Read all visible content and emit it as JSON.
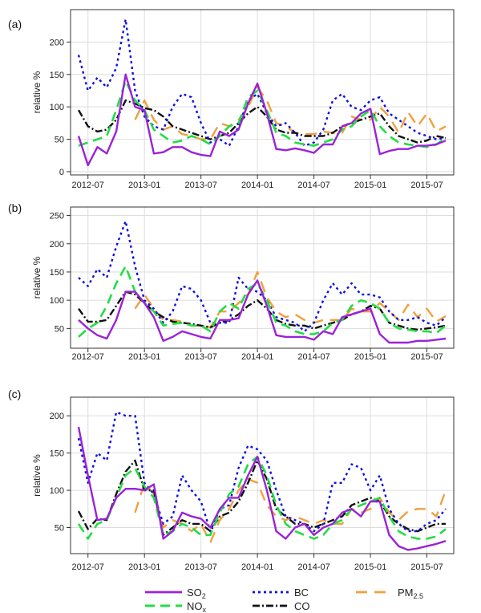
{
  "colors": {
    "SO2": "#9b22d6",
    "NOx": "#22dd44",
    "BC": "#1010dd",
    "CO": "#111111",
    "PM2.5": "#f0a040"
  },
  "chart_data": [
    {
      "type": "line",
      "panel_label": "(a)",
      "ylabel": "relative %",
      "xtick_labels": [
        "2012-07",
        "2013-01",
        "2013-07",
        "2014-01",
        "2014-07",
        "2015-01",
        "2015-07"
      ],
      "yticks": [
        0,
        50,
        100,
        150,
        200
      ],
      "ylim": [
        -5,
        250
      ],
      "grid": true,
      "x": [
        "2012-06",
        "2012-07",
        "2012-08",
        "2012-09",
        "2012-10",
        "2012-11",
        "2012-12",
        "2013-01",
        "2013-02",
        "2013-03",
        "2013-04",
        "2013-05",
        "2013-06",
        "2013-07",
        "2013-08",
        "2013-09",
        "2013-10",
        "2013-11",
        "2013-12",
        "2014-01",
        "2014-02",
        "2014-03",
        "2014-04",
        "2014-05",
        "2014-06",
        "2014-07",
        "2014-08",
        "2014-09",
        "2014-10",
        "2014-11",
        "2014-12",
        "2015-01",
        "2015-02",
        "2015-03",
        "2015-04",
        "2015-05",
        "2015-06",
        "2015-07",
        "2015-08",
        "2015-09"
      ],
      "series": [
        {
          "name": "SO2",
          "values": [
            55,
            10,
            38,
            28,
            62,
            150,
            100,
            95,
            28,
            30,
            38,
            38,
            30,
            26,
            24,
            62,
            55,
            65,
            105,
            136,
            90,
            35,
            33,
            36,
            33,
            29,
            42,
            42,
            70,
            75,
            90,
            97,
            27,
            32,
            35,
            35,
            40,
            40,
            42,
            48
          ]
        },
        {
          "name": "NOx",
          "values": [
            40,
            45,
            50,
            55,
            95,
            140,
            110,
            95,
            65,
            55,
            45,
            48,
            55,
            50,
            42,
            55,
            70,
            75,
            115,
            125,
            95,
            60,
            55,
            45,
            42,
            40,
            45,
            50,
            65,
            70,
            85,
            95,
            70,
            55,
            45,
            42,
            40,
            38,
            42,
            52
          ]
        },
        {
          "name": "BC",
          "values": [
            180,
            125,
            145,
            130,
            160,
            235,
            125,
            85,
            70,
            65,
            100,
            120,
            115,
            75,
            45,
            50,
            40,
            70,
            110,
            120,
            90,
            70,
            75,
            60,
            40,
            45,
            65,
            110,
            120,
            100,
            95,
            110,
            115,
            90,
            80,
            70,
            60,
            55,
            50,
            52
          ]
        },
        {
          "name": "CO",
          "values": [
            95,
            70,
            62,
            65,
            80,
            110,
            105,
            98,
            95,
            85,
            70,
            65,
            60,
            55,
            50,
            55,
            60,
            75,
            90,
            100,
            85,
            65,
            60,
            60,
            55,
            55,
            55,
            60,
            70,
            75,
            80,
            85,
            90,
            70,
            55,
            50,
            45,
            48,
            55,
            52
          ]
        },
        {
          "name": "PM2.5",
          "values": [
            null,
            null,
            null,
            null,
            null,
            null,
            80,
            110,
            80,
            65,
            70,
            58,
            55,
            50,
            50,
            75,
            70,
            80,
            100,
            130,
            110,
            75,
            70,
            60,
            58,
            58,
            62,
            60,
            60,
            85,
            80,
            80,
            100,
            85,
            60,
            92,
            70,
            90,
            62,
            70
          ]
        }
      ]
    },
    {
      "type": "line",
      "panel_label": "(b)",
      "ylabel": "relative %",
      "xtick_labels": [
        "2012-07",
        "2013-01",
        "2013-07",
        "2014-01",
        "2014-07",
        "2015-01",
        "2015-07"
      ],
      "yticks": [
        50,
        100,
        150,
        200,
        250
      ],
      "ylim": [
        15,
        265
      ],
      "grid": true,
      "x": [
        "2012-06",
        "2012-07",
        "2012-08",
        "2012-09",
        "2012-10",
        "2012-11",
        "2012-12",
        "2013-01",
        "2013-02",
        "2013-03",
        "2013-04",
        "2013-05",
        "2013-06",
        "2013-07",
        "2013-08",
        "2013-09",
        "2013-10",
        "2013-11",
        "2013-12",
        "2014-01",
        "2014-02",
        "2014-03",
        "2014-04",
        "2014-05",
        "2014-06",
        "2014-07",
        "2014-08",
        "2014-09",
        "2014-10",
        "2014-11",
        "2014-12",
        "2015-01",
        "2015-02",
        "2015-03",
        "2015-04",
        "2015-05",
        "2015-06",
        "2015-07",
        "2015-08",
        "2015-09"
      ],
      "series": [
        {
          "name": "SO2",
          "values": [
            65,
            50,
            38,
            32,
            65,
            115,
            115,
            95,
            70,
            28,
            35,
            45,
            40,
            35,
            32,
            65,
            65,
            68,
            110,
            135,
            90,
            38,
            35,
            35,
            35,
            30,
            45,
            40,
            70,
            75,
            80,
            85,
            40,
            25,
            25,
            25,
            28,
            28,
            30,
            32
          ]
        },
        {
          "name": "NOx",
          "values": [
            35,
            50,
            60,
            90,
            130,
            160,
            115,
            95,
            80,
            55,
            58,
            60,
            55,
            55,
            45,
            80,
            95,
            85,
            120,
            130,
            100,
            60,
            55,
            45,
            40,
            40,
            45,
            60,
            65,
            90,
            100,
            95,
            85,
            60,
            50,
            48,
            45,
            45,
            42,
            55
          ]
        },
        {
          "name": "BC",
          "values": [
            140,
            125,
            155,
            140,
            195,
            240,
            160,
            100,
            85,
            60,
            80,
            125,
            120,
            100,
            60,
            60,
            60,
            140,
            120,
            115,
            100,
            70,
            65,
            60,
            45,
            60,
            100,
            130,
            110,
            130,
            110,
            110,
            105,
            80,
            65,
            65,
            70,
            60,
            55,
            70
          ]
        },
        {
          "name": "CO",
          "values": [
            85,
            62,
            62,
            65,
            90,
            115,
            110,
            95,
            80,
            70,
            62,
            60,
            58,
            55,
            52,
            60,
            65,
            75,
            90,
            100,
            85,
            65,
            58,
            55,
            55,
            50,
            55,
            60,
            65,
            75,
            80,
            90,
            85,
            60,
            55,
            50,
            48,
            50,
            52,
            55
          ]
        },
        {
          "name": "PM2.5",
          "values": [
            null,
            null,
            null,
            null,
            null,
            null,
            85,
            110,
            85,
            65,
            65,
            62,
            55,
            55,
            52,
            80,
            80,
            95,
            110,
            150,
            105,
            80,
            70,
            75,
            65,
            60,
            65,
            65,
            65,
            85,
            80,
            80,
            95,
            80,
            65,
            92,
            70,
            85,
            62,
            72
          ]
        }
      ]
    },
    {
      "type": "line",
      "panel_label": "(c)",
      "ylabel": "relative %",
      "xtick_labels": [
        "2012-07",
        "2013-01",
        "2013-07",
        "2014-01",
        "2014-07",
        "2015-01",
        "2015-07"
      ],
      "yticks": [
        50,
        100,
        150,
        200
      ],
      "ylim": [
        15,
        225
      ],
      "grid": true,
      "x": [
        "2012-06",
        "2012-07",
        "2012-08",
        "2012-09",
        "2012-10",
        "2012-11",
        "2012-12",
        "2013-01",
        "2013-02",
        "2013-03",
        "2013-04",
        "2013-05",
        "2013-06",
        "2013-07",
        "2013-08",
        "2013-09",
        "2013-10",
        "2013-11",
        "2013-12",
        "2014-01",
        "2014-02",
        "2014-03",
        "2014-04",
        "2014-05",
        "2014-06",
        "2014-07",
        "2014-08",
        "2014-09",
        "2014-10",
        "2014-11",
        "2014-12",
        "2015-01",
        "2015-02",
        "2015-03",
        "2015-04",
        "2015-05",
        "2015-06",
        "2015-07",
        "2015-08",
        "2015-09"
      ],
      "series": [
        {
          "name": "SO2",
          "values": [
            185,
            120,
            60,
            62,
            90,
            102,
            102,
            100,
            108,
            35,
            45,
            70,
            65,
            62,
            50,
            75,
            90,
            90,
            120,
            145,
            100,
            45,
            35,
            50,
            55,
            40,
            50,
            55,
            70,
            75,
            65,
            85,
            85,
            40,
            25,
            20,
            22,
            25,
            28,
            32
          ]
        },
        {
          "name": "NOx",
          "values": [
            55,
            35,
            55,
            60,
            90,
            120,
            130,
            105,
            90,
            40,
            45,
            55,
            50,
            40,
            40,
            70,
            95,
            105,
            135,
            145,
            120,
            80,
            55,
            45,
            40,
            35,
            40,
            55,
            60,
            75,
            80,
            85,
            90,
            65,
            45,
            38,
            35,
            35,
            38,
            48
          ]
        },
        {
          "name": "BC",
          "values": [
            170,
            110,
            150,
            140,
            205,
            200,
            200,
            110,
            95,
            55,
            65,
            120,
            100,
            85,
            45,
            75,
            80,
            130,
            160,
            155,
            140,
            100,
            65,
            60,
            55,
            45,
            55,
            110,
            110,
            135,
            130,
            100,
            120,
            75,
            55,
            45,
            45,
            55,
            60,
            75
          ]
        },
        {
          "name": "CO",
          "values": [
            72,
            48,
            62,
            60,
            95,
            125,
            140,
            100,
            100,
            40,
            50,
            60,
            55,
            55,
            45,
            65,
            70,
            85,
            110,
            140,
            115,
            75,
            65,
            55,
            55,
            50,
            55,
            60,
            65,
            80,
            85,
            90,
            85,
            65,
            55,
            48,
            45,
            50,
            55,
            55
          ]
        },
        {
          "name": "PM2.5",
          "values": [
            null,
            null,
            null,
            null,
            null,
            null,
            70,
            110,
            95,
            50,
            60,
            55,
            45,
            55,
            30,
            60,
            75,
            100,
            115,
            110,
            80,
            65,
            60,
            65,
            60,
            55,
            60,
            55,
            55,
            75,
            70,
            75,
            90,
            70,
            60,
            72,
            75,
            75,
            65,
            100
          ]
        }
      ]
    }
  ],
  "legend": {
    "items": [
      {
        "name": "SO2",
        "label_main": "SO",
        "label_sub": "2"
      },
      {
        "name": "BC",
        "label_main": "BC",
        "label_sub": ""
      },
      {
        "name": "PM2.5",
        "label_main": "PM",
        "label_sub": "2.5"
      },
      {
        "name": "NOx",
        "label_main": "NO",
        "label_sub": "x"
      },
      {
        "name": "CO",
        "label_main": "CO",
        "label_sub": ""
      }
    ]
  }
}
